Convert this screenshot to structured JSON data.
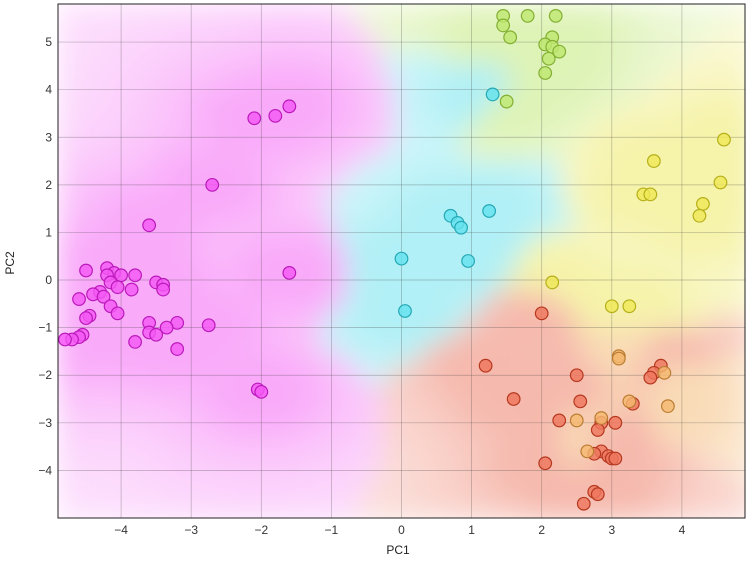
{
  "chart_data": {
    "type": "scatter",
    "title": "",
    "xlabel": "PC1",
    "ylabel": "PC2",
    "xlim": [
      -4.9,
      4.9
    ],
    "ylim": [
      -5.0,
      5.8
    ],
    "xticks": [
      -4,
      -3,
      -2,
      -1,
      0,
      1,
      2,
      3,
      4
    ],
    "yticks": [
      -4,
      -3,
      -2,
      -1,
      0,
      1,
      2,
      3,
      4,
      5
    ],
    "grid": true,
    "legend": "none",
    "background": "classification regions shaded by nearest class",
    "series": [
      {
        "color": "#f020f0",
        "points": [
          [
            -2.1,
            3.4
          ],
          [
            -1.8,
            3.45
          ],
          [
            -1.6,
            3.65
          ],
          [
            -2.7,
            2.0
          ],
          [
            -3.6,
            1.15
          ],
          [
            -1.6,
            0.15
          ],
          [
            -4.5,
            0.2
          ],
          [
            -4.2,
            0.25
          ],
          [
            -4.1,
            0.15
          ],
          [
            -4.2,
            0.1
          ],
          [
            -4.0,
            0.1
          ],
          [
            -3.8,
            0.1
          ],
          [
            -4.15,
            -0.05
          ],
          [
            -3.5,
            -0.05
          ],
          [
            -3.4,
            -0.1
          ],
          [
            -4.05,
            -0.15
          ],
          [
            -3.4,
            -0.2
          ],
          [
            -3.85,
            -0.2
          ],
          [
            -4.3,
            -0.25
          ],
          [
            -4.4,
            -0.3
          ],
          [
            -4.25,
            -0.35
          ],
          [
            -4.6,
            -0.4
          ],
          [
            -4.15,
            -0.55
          ],
          [
            -4.05,
            -0.7
          ],
          [
            -4.45,
            -0.75
          ],
          [
            -4.5,
            -0.8
          ],
          [
            -3.6,
            -0.9
          ],
          [
            -3.2,
            -0.9
          ],
          [
            -2.75,
            -0.95
          ],
          [
            -3.35,
            -1.0
          ],
          [
            -3.6,
            -1.1
          ],
          [
            -3.5,
            -1.15
          ],
          [
            -4.55,
            -1.15
          ],
          [
            -4.6,
            -1.2
          ],
          [
            -4.7,
            -1.25
          ],
          [
            -4.8,
            -1.25
          ],
          [
            -3.8,
            -1.3
          ],
          [
            -3.2,
            -1.45
          ],
          [
            -2.05,
            -2.3
          ],
          [
            -2.0,
            -2.35
          ]
        ]
      },
      {
        "color": "#a8e040",
        "points": [
          [
            1.45,
            5.55
          ],
          [
            1.45,
            5.35
          ],
          [
            1.55,
            5.1
          ],
          [
            1.8,
            5.55
          ],
          [
            2.2,
            5.55
          ],
          [
            2.15,
            5.1
          ],
          [
            2.05,
            4.95
          ],
          [
            2.15,
            4.9
          ],
          [
            2.25,
            4.8
          ],
          [
            2.1,
            4.65
          ],
          [
            2.05,
            4.35
          ],
          [
            1.5,
            3.75
          ]
        ]
      },
      {
        "color": "#30d8e8",
        "points": [
          [
            1.3,
            3.9
          ],
          [
            0.7,
            1.35
          ],
          [
            0.8,
            1.2
          ],
          [
            0.85,
            1.1
          ],
          [
            1.25,
            1.45
          ],
          [
            0.0,
            0.45
          ],
          [
            0.95,
            0.4
          ],
          [
            0.05,
            -0.65
          ]
        ]
      },
      {
        "color": "#e8e020",
        "points": [
          [
            4.6,
            2.95
          ],
          [
            3.6,
            2.5
          ],
          [
            4.55,
            2.05
          ],
          [
            3.45,
            1.8
          ],
          [
            3.55,
            1.8
          ],
          [
            4.3,
            1.6
          ],
          [
            4.25,
            1.35
          ],
          [
            2.15,
            -0.05
          ],
          [
            3.0,
            -0.55
          ],
          [
            3.25,
            -0.55
          ]
        ]
      },
      {
        "color": "#e84828",
        "points": [
          [
            2.0,
            -0.7
          ],
          [
            1.2,
            -1.8
          ],
          [
            3.7,
            -1.8
          ],
          [
            3.6,
            -1.95
          ],
          [
            3.55,
            -2.05
          ],
          [
            2.5,
            -2.0
          ],
          [
            1.6,
            -2.5
          ],
          [
            2.55,
            -2.55
          ],
          [
            3.3,
            -2.6
          ],
          [
            2.25,
            -2.95
          ],
          [
            2.85,
            -3.0
          ],
          [
            3.05,
            -3.0
          ],
          [
            2.8,
            -3.15
          ],
          [
            2.85,
            -3.6
          ],
          [
            2.75,
            -3.65
          ],
          [
            2.95,
            -3.7
          ],
          [
            3.0,
            -3.75
          ],
          [
            3.05,
            -3.75
          ],
          [
            2.05,
            -3.85
          ],
          [
            2.75,
            -4.45
          ],
          [
            2.8,
            -4.5
          ],
          [
            2.6,
            -4.7
          ]
        ]
      },
      {
        "color": "#f0a040",
        "points": [
          [
            3.1,
            -1.6
          ],
          [
            3.1,
            -1.65
          ],
          [
            3.75,
            -1.95
          ],
          [
            3.25,
            -2.55
          ],
          [
            3.8,
            -2.65
          ],
          [
            2.85,
            -2.9
          ],
          [
            2.5,
            -2.95
          ],
          [
            2.65,
            -3.6
          ]
        ]
      }
    ]
  }
}
